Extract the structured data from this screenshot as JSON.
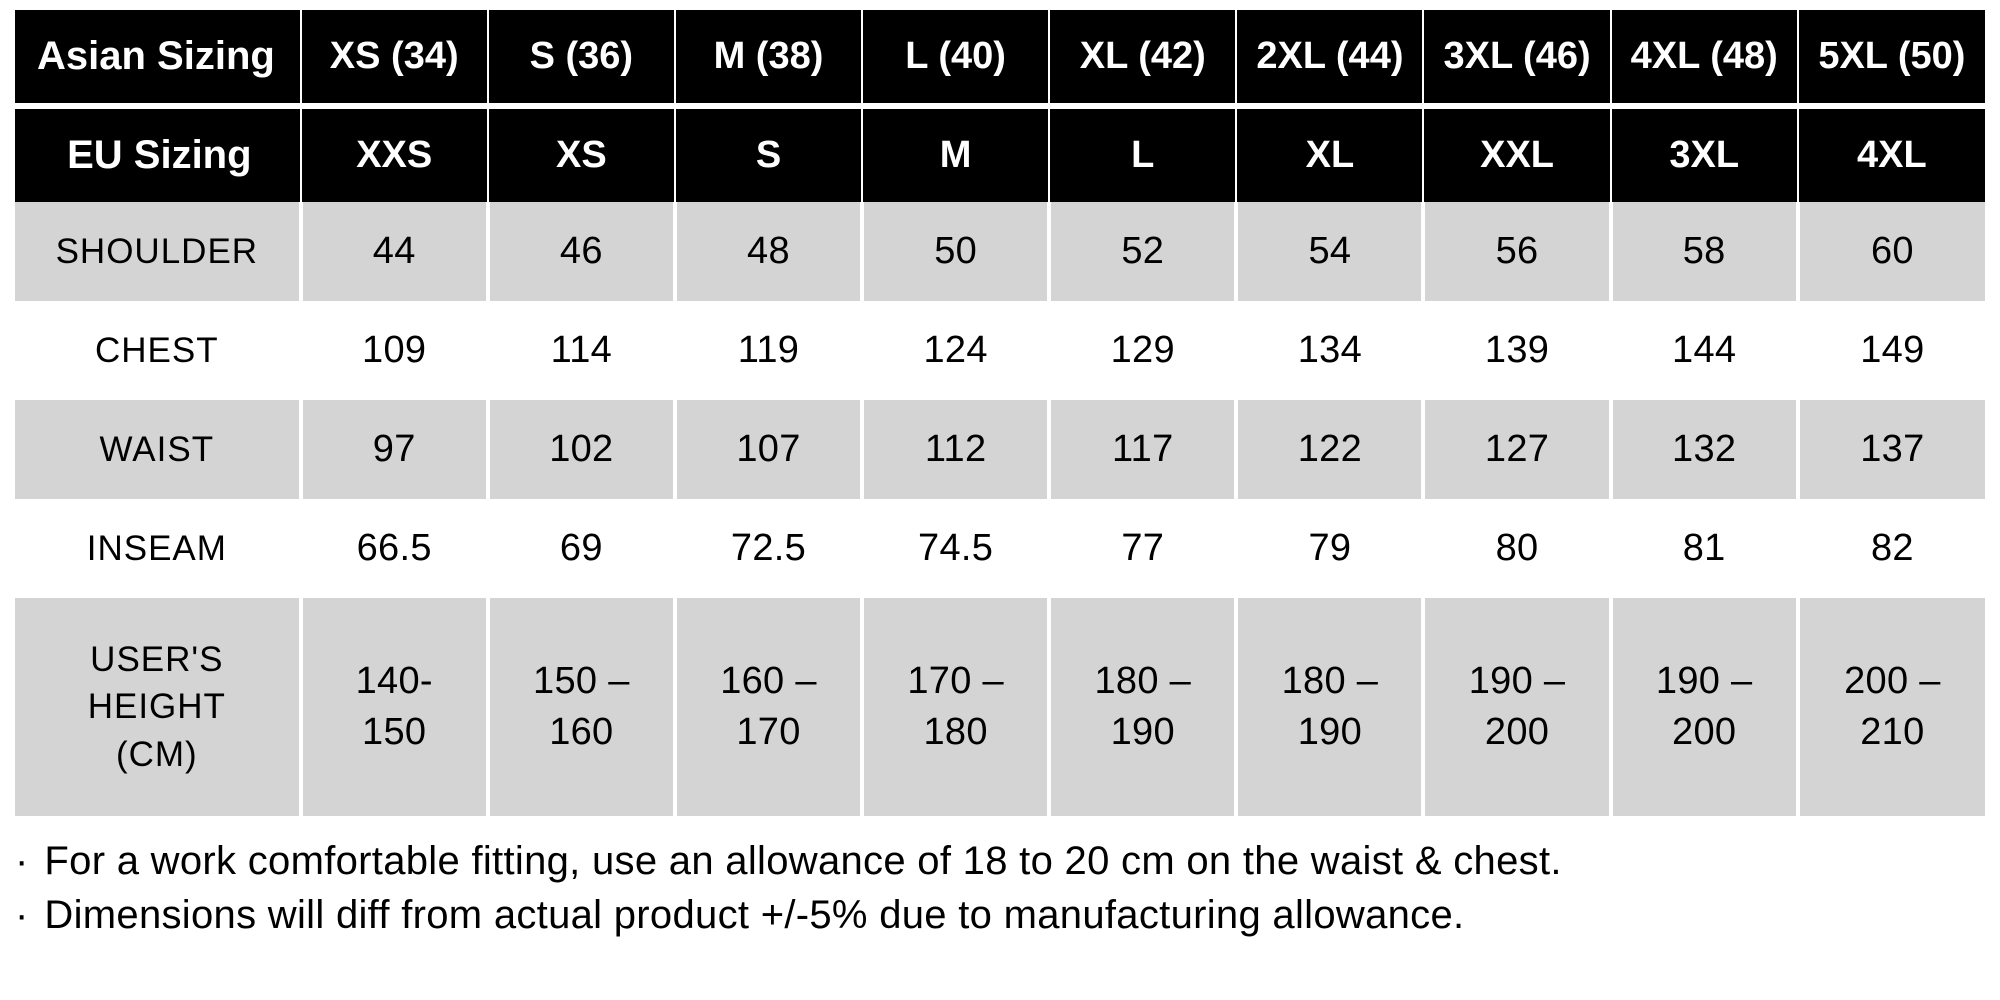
{
  "table": {
    "type": "table",
    "columns_count": 10,
    "col_widths_pct": [
      14.5,
      9.5,
      9.5,
      9.5,
      9.5,
      9.5,
      9.5,
      9.5,
      9.5,
      9.5
    ],
    "header_bg": "#000000",
    "header_fg": "#ffffff",
    "header_divider": "#ffffff",
    "body_row_shade_bg": "#d4d4d4",
    "body_row_plain_bg": "#ffffff",
    "body_cell_divider": "#ffffff",
    "font_family": "Segoe UI / Helvetica Neue / Arial",
    "header_font_size_pt": 29,
    "body_font_size_pt": 29,
    "label_font_size_pt": 26,
    "headers": {
      "asian": {
        "label": "Asian Sizing",
        "sizes": [
          "XS (34)",
          "S (36)",
          "M (38)",
          "L (40)",
          "XL (42)",
          "2XL (44)",
          "3XL (46)",
          "4XL (48)",
          "5XL (50)"
        ]
      },
      "eu": {
        "label": "EU Sizing",
        "sizes": [
          "XXS",
          "XS",
          "S",
          "M",
          "L",
          "XL",
          "XXL",
          "3XL",
          "4XL"
        ]
      }
    },
    "rows": [
      {
        "label": "SHOULDER",
        "shade": true,
        "tall": false,
        "values": [
          "44",
          "46",
          "48",
          "50",
          "52",
          "54",
          "56",
          "58",
          "60"
        ]
      },
      {
        "label": "CHEST",
        "shade": false,
        "tall": false,
        "values": [
          "109",
          "114",
          "119",
          "124",
          "129",
          "134",
          "139",
          "144",
          "149"
        ]
      },
      {
        "label": "WAIST",
        "shade": true,
        "tall": false,
        "values": [
          "97",
          "102",
          "107",
          "112",
          "117",
          "122",
          "127",
          "132",
          "137"
        ]
      },
      {
        "label": "INSEAM",
        "shade": false,
        "tall": false,
        "values": [
          "66.5",
          "69",
          "72.5",
          "74.5",
          "77",
          "79",
          "80",
          "81",
          "82"
        ]
      },
      {
        "label": "USER'S HEIGHT\n(CM)",
        "shade": true,
        "tall": true,
        "values": [
          "140-\n150",
          "150 –\n160",
          "160 –\n170",
          "170 –\n180",
          "180 –\n190",
          "180 –\n190",
          "190 –\n200",
          "190 –\n200",
          "200 –\n210"
        ]
      }
    ]
  },
  "notes": {
    "lines": [
      "For a work comfortable fitting, use an allowance of 18 to 20 cm on the waist & chest.",
      "Dimensions will diff from actual product +/-5% due to manufacturing allowance."
    ],
    "font_size_pt": 30,
    "color": "#000000"
  }
}
